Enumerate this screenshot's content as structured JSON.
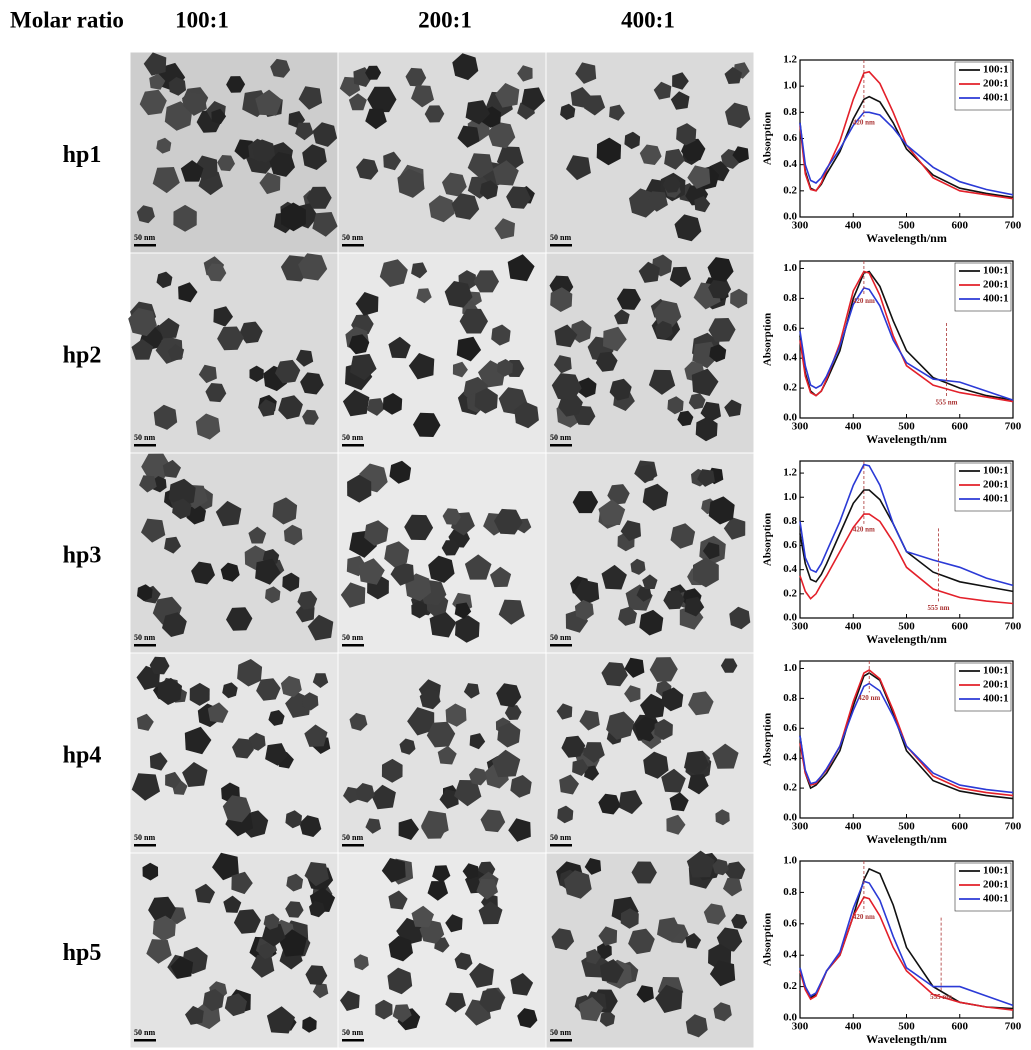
{
  "header": {
    "corner": "Molar ratio",
    "columns": [
      "100:1",
      "200:1",
      "400:1"
    ]
  },
  "rows": [
    {
      "label": "hp1",
      "scale_bars": [
        "50 nm",
        "50 nm",
        "50 nm"
      ]
    },
    {
      "label": "hp2",
      "scale_bars": [
        "50 nm",
        "50 nm",
        "50 nm"
      ]
    },
    {
      "label": "hp3",
      "scale_bars": [
        "50 nm",
        "50 nm",
        "50 nm"
      ]
    },
    {
      "label": "hp4",
      "scale_bars": [
        "50 nm",
        "50 nm",
        "50 nm"
      ]
    },
    {
      "label": "hp5",
      "scale_bars": [
        "50 nm",
        "50 nm",
        "50 nm"
      ]
    }
  ],
  "chart_data": [
    {
      "type": "line",
      "x_label": "Wavelength/nm",
      "y_label": "Absorption",
      "x": [
        300,
        310,
        320,
        330,
        340,
        350,
        375,
        400,
        420,
        430,
        450,
        475,
        500,
        550,
        600,
        650,
        700
      ],
      "series": [
        {
          "name": "100:1",
          "color": "#111111",
          "values": [
            0.72,
            0.35,
            0.22,
            0.2,
            0.25,
            0.33,
            0.5,
            0.75,
            0.9,
            0.92,
            0.88,
            0.72,
            0.52,
            0.32,
            0.22,
            0.18,
            0.15
          ]
        },
        {
          "name": "200:1",
          "color": "#e3202a",
          "values": [
            0.7,
            0.33,
            0.21,
            0.2,
            0.26,
            0.36,
            0.58,
            0.9,
            1.1,
            1.11,
            1.02,
            0.8,
            0.55,
            0.3,
            0.2,
            0.17,
            0.14
          ]
        },
        {
          "name": "400:1",
          "color": "#2b3ad6",
          "values": [
            0.72,
            0.4,
            0.28,
            0.26,
            0.3,
            0.37,
            0.52,
            0.7,
            0.8,
            0.8,
            0.78,
            0.68,
            0.55,
            0.38,
            0.27,
            0.21,
            0.17
          ]
        }
      ],
      "xlim": [
        300,
        700
      ],
      "xticks": [
        300,
        400,
        500,
        600,
        700
      ],
      "ylim": [
        0,
        1.2
      ],
      "yticks": [
        {
          "value": 0,
          "label": "0.0"
        },
        0.2,
        0.4,
        0.6,
        0.8,
        {
          "value": 1,
          "label": "1.0"
        },
        1.2
      ],
      "annotations": [
        {
          "text": "420 nm",
          "x": 420,
          "y": 0.72
        }
      ]
    },
    {
      "type": "line",
      "x_label": "Wavelength/nm",
      "y_label": "Absorption",
      "x": [
        300,
        310,
        320,
        330,
        340,
        350,
        375,
        400,
        420,
        430,
        450,
        475,
        500,
        550,
        600,
        650,
        700
      ],
      "series": [
        {
          "name": "100:1",
          "color": "#111111",
          "values": [
            0.55,
            0.3,
            0.18,
            0.15,
            0.18,
            0.25,
            0.45,
            0.8,
            0.97,
            0.98,
            0.88,
            0.65,
            0.45,
            0.27,
            0.2,
            0.15,
            0.12
          ]
        },
        {
          "name": "200:1",
          "color": "#e3202a",
          "values": [
            0.52,
            0.28,
            0.17,
            0.15,
            0.18,
            0.26,
            0.5,
            0.85,
            0.98,
            0.97,
            0.82,
            0.55,
            0.35,
            0.22,
            0.17,
            0.14,
            0.11
          ]
        },
        {
          "name": "400:1",
          "color": "#2b3ad6",
          "values": [
            0.58,
            0.35,
            0.22,
            0.2,
            0.22,
            0.28,
            0.48,
            0.76,
            0.87,
            0.86,
            0.75,
            0.52,
            0.37,
            0.26,
            0.24,
            0.18,
            0.12
          ]
        }
      ],
      "xlim": [
        300,
        700
      ],
      "xticks": [
        300,
        400,
        500,
        600,
        700
      ],
      "ylim": [
        0,
        1.05
      ],
      "yticks": [
        {
          "value": 0,
          "label": "0.0"
        },
        0.2,
        0.4,
        0.6,
        0.8,
        {
          "value": 1,
          "label": "1.0"
        }
      ],
      "annotations": [
        {
          "text": "420 nm",
          "x": 420,
          "y": 0.78
        },
        {
          "text": "555 nm",
          "x": 575,
          "y": 0.1
        }
      ]
    },
    {
      "type": "line",
      "x_label": "Wavelength/nm",
      "y_label": "Absorption",
      "x": [
        300,
        310,
        320,
        330,
        340,
        350,
        375,
        400,
        420,
        430,
        450,
        475,
        500,
        550,
        600,
        650,
        700
      ],
      "series": [
        {
          "name": "100:1",
          "color": "#111111",
          "values": [
            0.7,
            0.45,
            0.32,
            0.3,
            0.36,
            0.45,
            0.7,
            0.95,
            1.06,
            1.06,
            0.98,
            0.78,
            0.55,
            0.38,
            0.3,
            0.26,
            0.22
          ]
        },
        {
          "name": "200:1",
          "color": "#e3202a",
          "values": [
            0.35,
            0.22,
            0.16,
            0.2,
            0.28,
            0.35,
            0.55,
            0.75,
            0.86,
            0.86,
            0.8,
            0.63,
            0.42,
            0.24,
            0.17,
            0.14,
            0.12
          ]
        },
        {
          "name": "400:1",
          "color": "#2b3ad6",
          "values": [
            0.8,
            0.5,
            0.4,
            0.38,
            0.45,
            0.55,
            0.8,
            1.1,
            1.27,
            1.26,
            1.1,
            0.78,
            0.55,
            0.48,
            0.42,
            0.33,
            0.27
          ]
        }
      ],
      "xlim": [
        300,
        700
      ],
      "xticks": [
        300,
        400,
        500,
        600,
        700
      ],
      "ylim": [
        0,
        1.3
      ],
      "yticks": [
        {
          "value": 0,
          "label": "0.0"
        },
        0.2,
        0.4,
        0.6,
        0.8,
        {
          "value": 1,
          "label": "1.0"
        },
        1.2
      ],
      "annotations": [
        {
          "text": "420 nm",
          "x": 420,
          "y": 0.73
        },
        {
          "text": "555 nm",
          "x": 560,
          "y": 0.08
        }
      ]
    },
    {
      "type": "line",
      "x_label": "Wavelength/nm",
      "y_label": "Absorption",
      "x": [
        300,
        310,
        320,
        330,
        340,
        350,
        375,
        400,
        420,
        430,
        450,
        475,
        500,
        550,
        600,
        650,
        700
      ],
      "series": [
        {
          "name": "100:1",
          "color": "#111111",
          "values": [
            0.55,
            0.3,
            0.2,
            0.22,
            0.26,
            0.3,
            0.45,
            0.75,
            0.95,
            0.97,
            0.92,
            0.7,
            0.45,
            0.25,
            0.18,
            0.15,
            0.13
          ]
        },
        {
          "name": "200:1",
          "color": "#e3202a",
          "values": [
            0.5,
            0.3,
            0.22,
            0.23,
            0.28,
            0.32,
            0.48,
            0.78,
            0.97,
            0.99,
            0.93,
            0.72,
            0.48,
            0.28,
            0.2,
            0.17,
            0.15
          ]
        },
        {
          "name": "400:1",
          "color": "#2b3ad6",
          "values": [
            0.55,
            0.32,
            0.23,
            0.24,
            0.28,
            0.33,
            0.48,
            0.72,
            0.88,
            0.9,
            0.85,
            0.68,
            0.48,
            0.3,
            0.22,
            0.19,
            0.17
          ]
        }
      ],
      "xlim": [
        300,
        700
      ],
      "xticks": [
        300,
        400,
        500,
        600,
        700
      ],
      "ylim": [
        0,
        1.05
      ],
      "yticks": [
        {
          "value": 0,
          "label": "0.0"
        },
        0.2,
        0.4,
        0.6,
        0.8,
        {
          "value": 1,
          "label": "1.0"
        }
      ],
      "annotations": [
        {
          "text": "420 nm",
          "x": 430,
          "y": 0.8
        }
      ]
    },
    {
      "type": "line",
      "x_label": "Wavelength/nm",
      "y_label": "Absorption",
      "x": [
        300,
        310,
        320,
        330,
        340,
        350,
        375,
        400,
        420,
        430,
        450,
        475,
        500,
        550,
        600,
        650,
        700
      ],
      "series": [
        {
          "name": "100:1",
          "color": "#111111",
          "values": [
            0.3,
            0.2,
            0.13,
            0.15,
            0.22,
            0.3,
            0.4,
            0.65,
            0.88,
            0.95,
            0.92,
            0.72,
            0.45,
            0.2,
            0.1,
            0.07,
            0.06
          ]
        },
        {
          "name": "200:1",
          "color": "#e3202a",
          "values": [
            0.3,
            0.18,
            0.12,
            0.14,
            0.22,
            0.3,
            0.4,
            0.65,
            0.77,
            0.76,
            0.65,
            0.45,
            0.3,
            0.15,
            0.1,
            0.07,
            0.05
          ]
        },
        {
          "name": "400:1",
          "color": "#2b3ad6",
          "values": [
            0.32,
            0.2,
            0.14,
            0.16,
            0.23,
            0.3,
            0.42,
            0.7,
            0.87,
            0.86,
            0.75,
            0.52,
            0.32,
            0.2,
            0.2,
            0.14,
            0.08
          ]
        }
      ],
      "xlim": [
        300,
        700
      ],
      "xticks": [
        300,
        400,
        500,
        600,
        700
      ],
      "ylim": [
        0,
        1.0
      ],
      "yticks": [
        {
          "value": 0,
          "label": "0.0"
        },
        0.2,
        0.4,
        0.6,
        0.8,
        {
          "value": 1,
          "label": "1.0"
        }
      ],
      "annotations": [
        {
          "text": "420 nm",
          "x": 420,
          "y": 0.64
        },
        {
          "text": "555 nm",
          "x": 565,
          "y": 0.13
        }
      ]
    }
  ]
}
